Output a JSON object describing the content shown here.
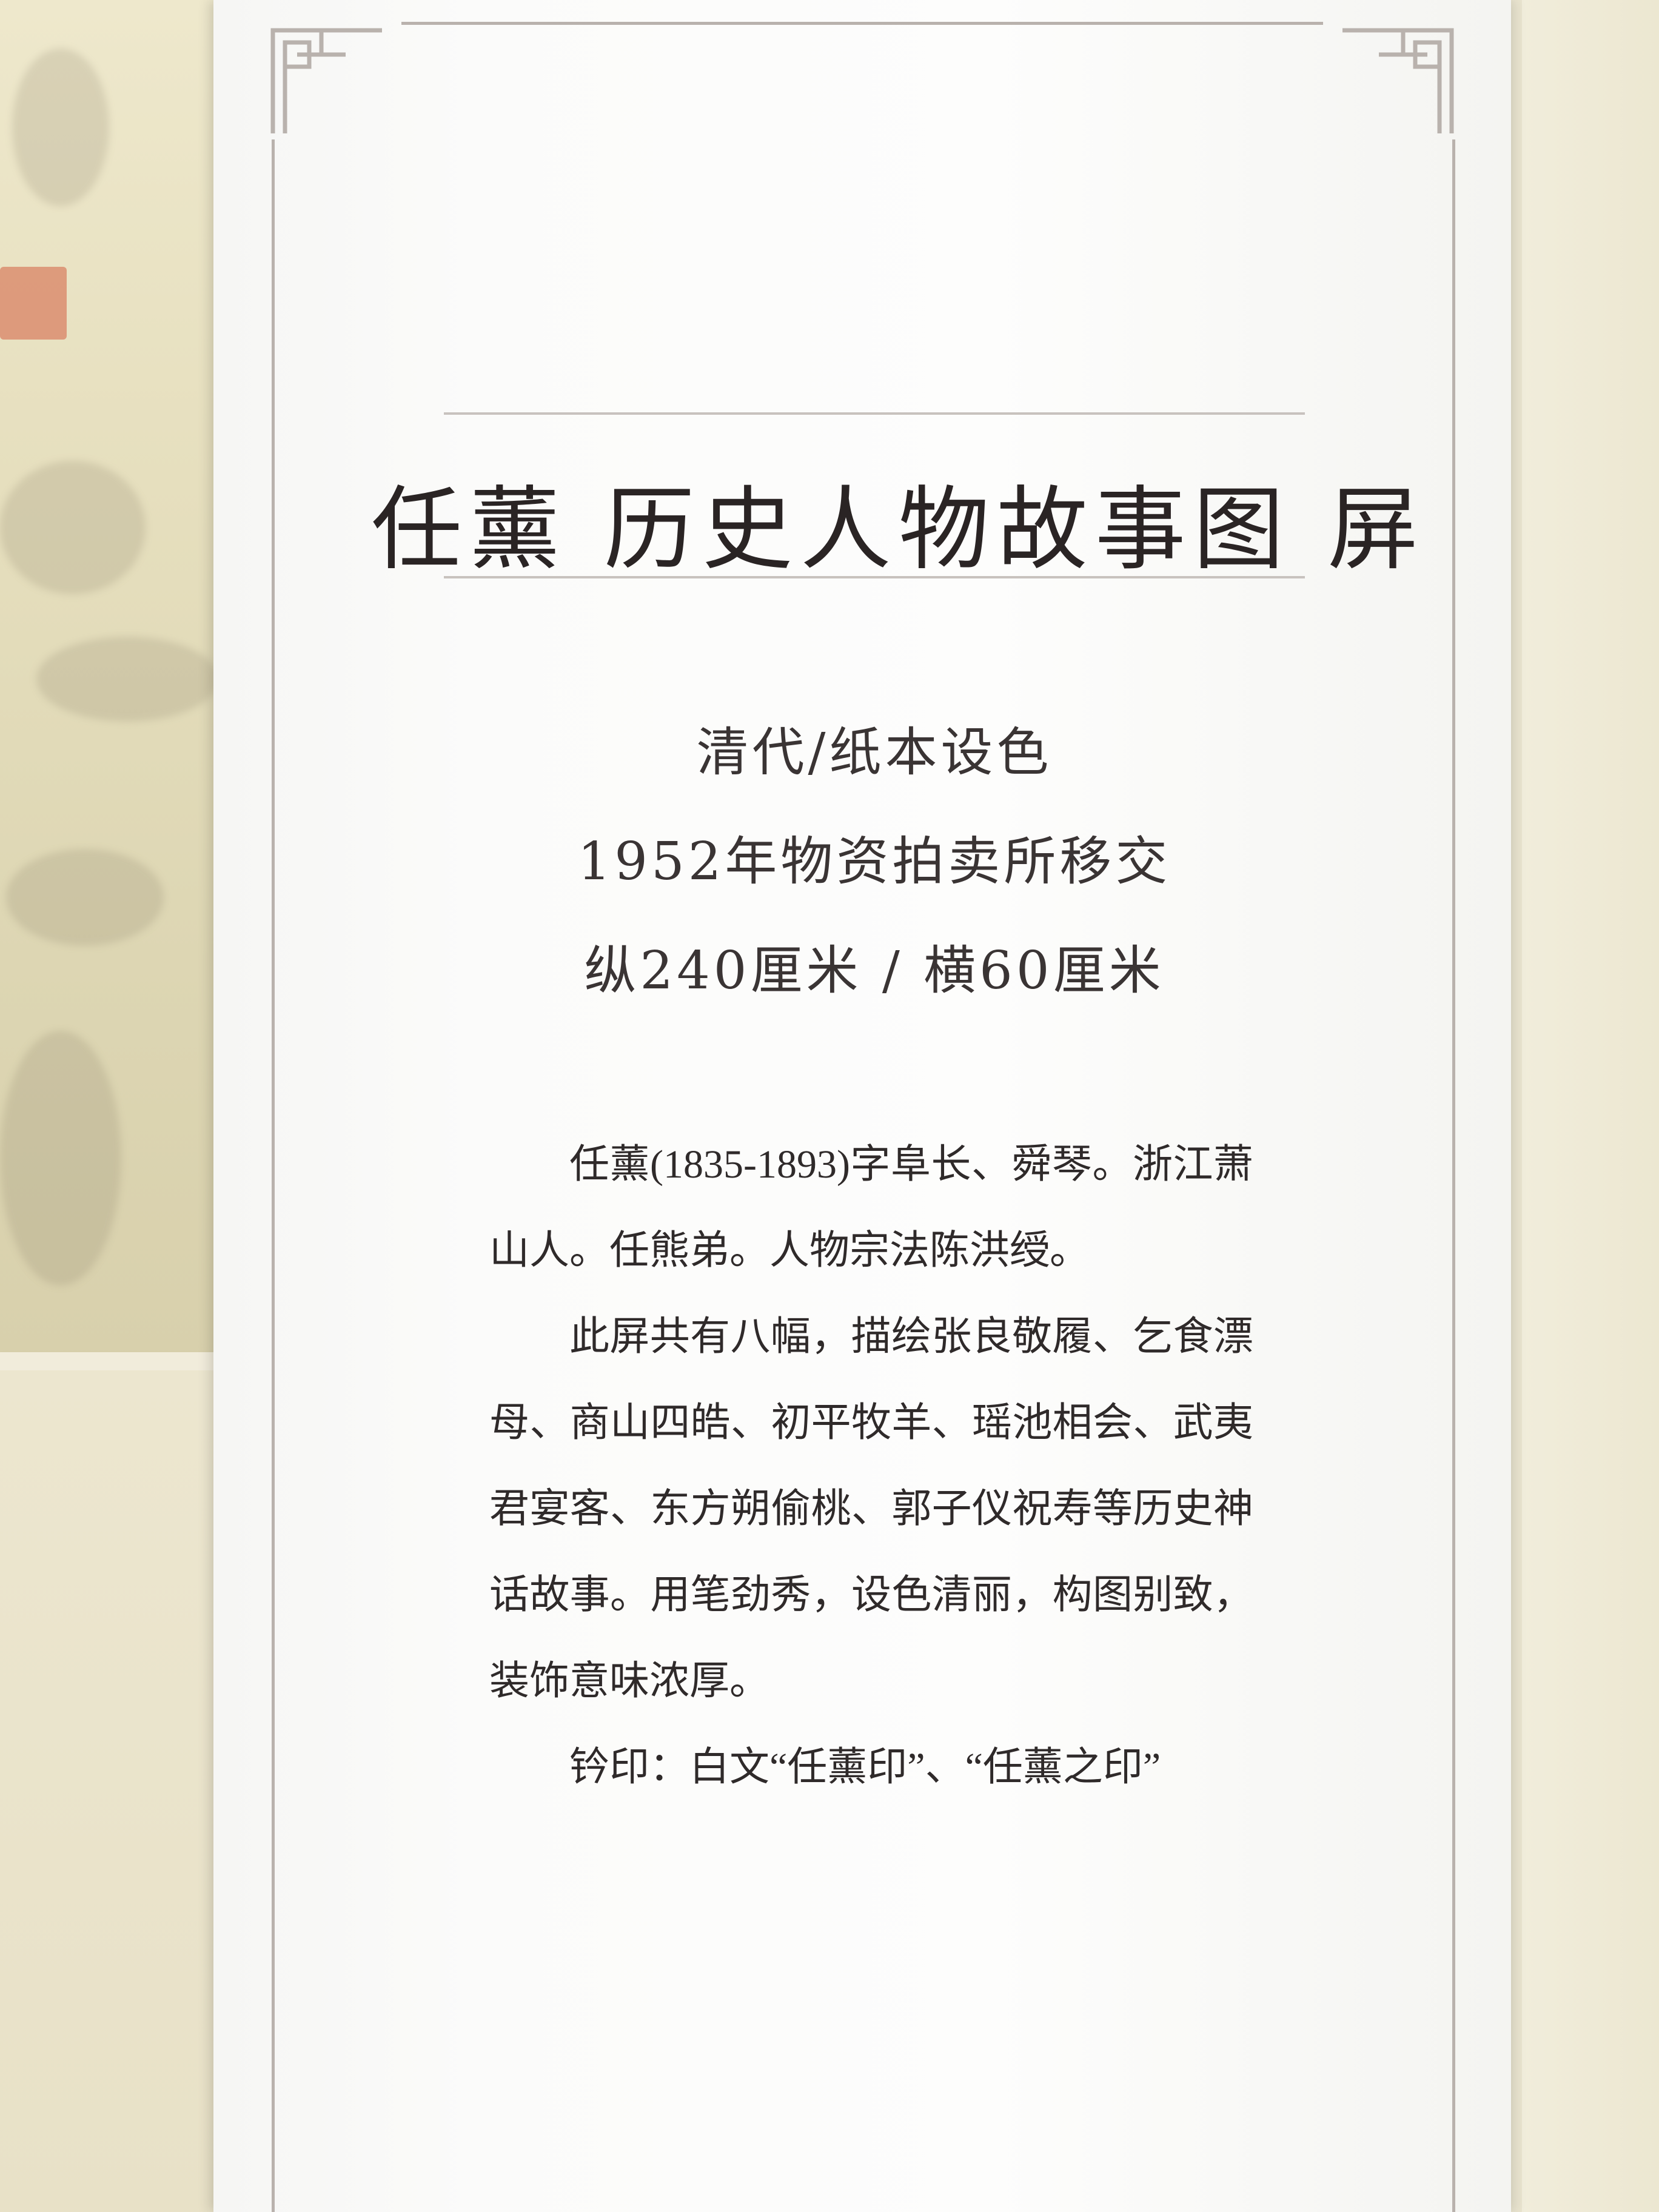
{
  "label": {
    "title": "任薰 历史人物故事图 屏",
    "meta": [
      "清代/纸本设色",
      "1952年物资拍卖所移交",
      "纵240厘米 / 横60厘米"
    ],
    "paragraphs": [
      "任薰(1835-1893)字阜长、舜琴。浙江萧山人。任熊弟。人物宗法陈洪绶。",
      "此屏共有八幅，描绘张良敬履、乞食漂母、商山四皓、初平牧羊、瑶池相会、武夷君宴客、东方朔偷桃、郭子仪祝寿等历史神话故事。用笔劲秀，设色清丽，构图别致，装饰意味浓厚。",
      "钤印：白文“任薰印”、“任薰之印”"
    ]
  },
  "colors": {
    "card": "#fdfdfc",
    "rule": "#b9b2ad",
    "text": "#2a2424",
    "wall": "#e9e4cf"
  }
}
